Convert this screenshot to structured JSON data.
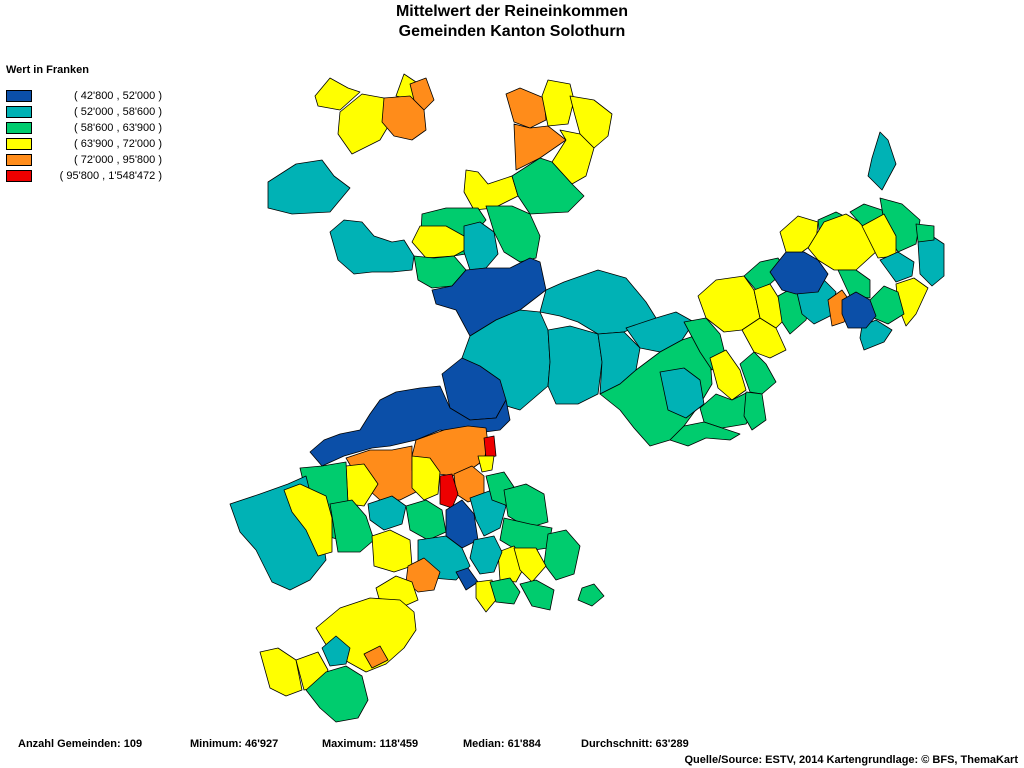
{
  "title": {
    "line1": "Mittelwert der Reineinkommen",
    "line2": "Gemeinden Kanton Solothurn"
  },
  "legend": {
    "heading": "Wert in Franken",
    "classes": [
      {
        "label": "( 42'800 , 52'000 )",
        "color": "#0b4fa8"
      },
      {
        "label": "( 52'000 , 58'600 )",
        "color": "#00b2b5"
      },
      {
        "label": "( 58'600 , 63'900 )",
        "color": "#00cc6e"
      },
      {
        "label": "( 63'900 , 72'000 )",
        "color": "#ffff00"
      },
      {
        "label": "( 72'000 , 95'800 )",
        "color": "#ff8c1a"
      },
      {
        "label": "( 95'800 , 1'548'472 )",
        "color": "#ee0000"
      }
    ]
  },
  "stats": {
    "count": "Anzahl Gemeinden: 109",
    "min": "Minimum: 46'927",
    "max": "Maximum: 118'459",
    "median": "Median: 61'884",
    "mean": "Durchschnitt: 63'289"
  },
  "source": "Quelle/Source: ESTV, 2014 Kartengrundlage: © BFS, ThemaKart"
}
